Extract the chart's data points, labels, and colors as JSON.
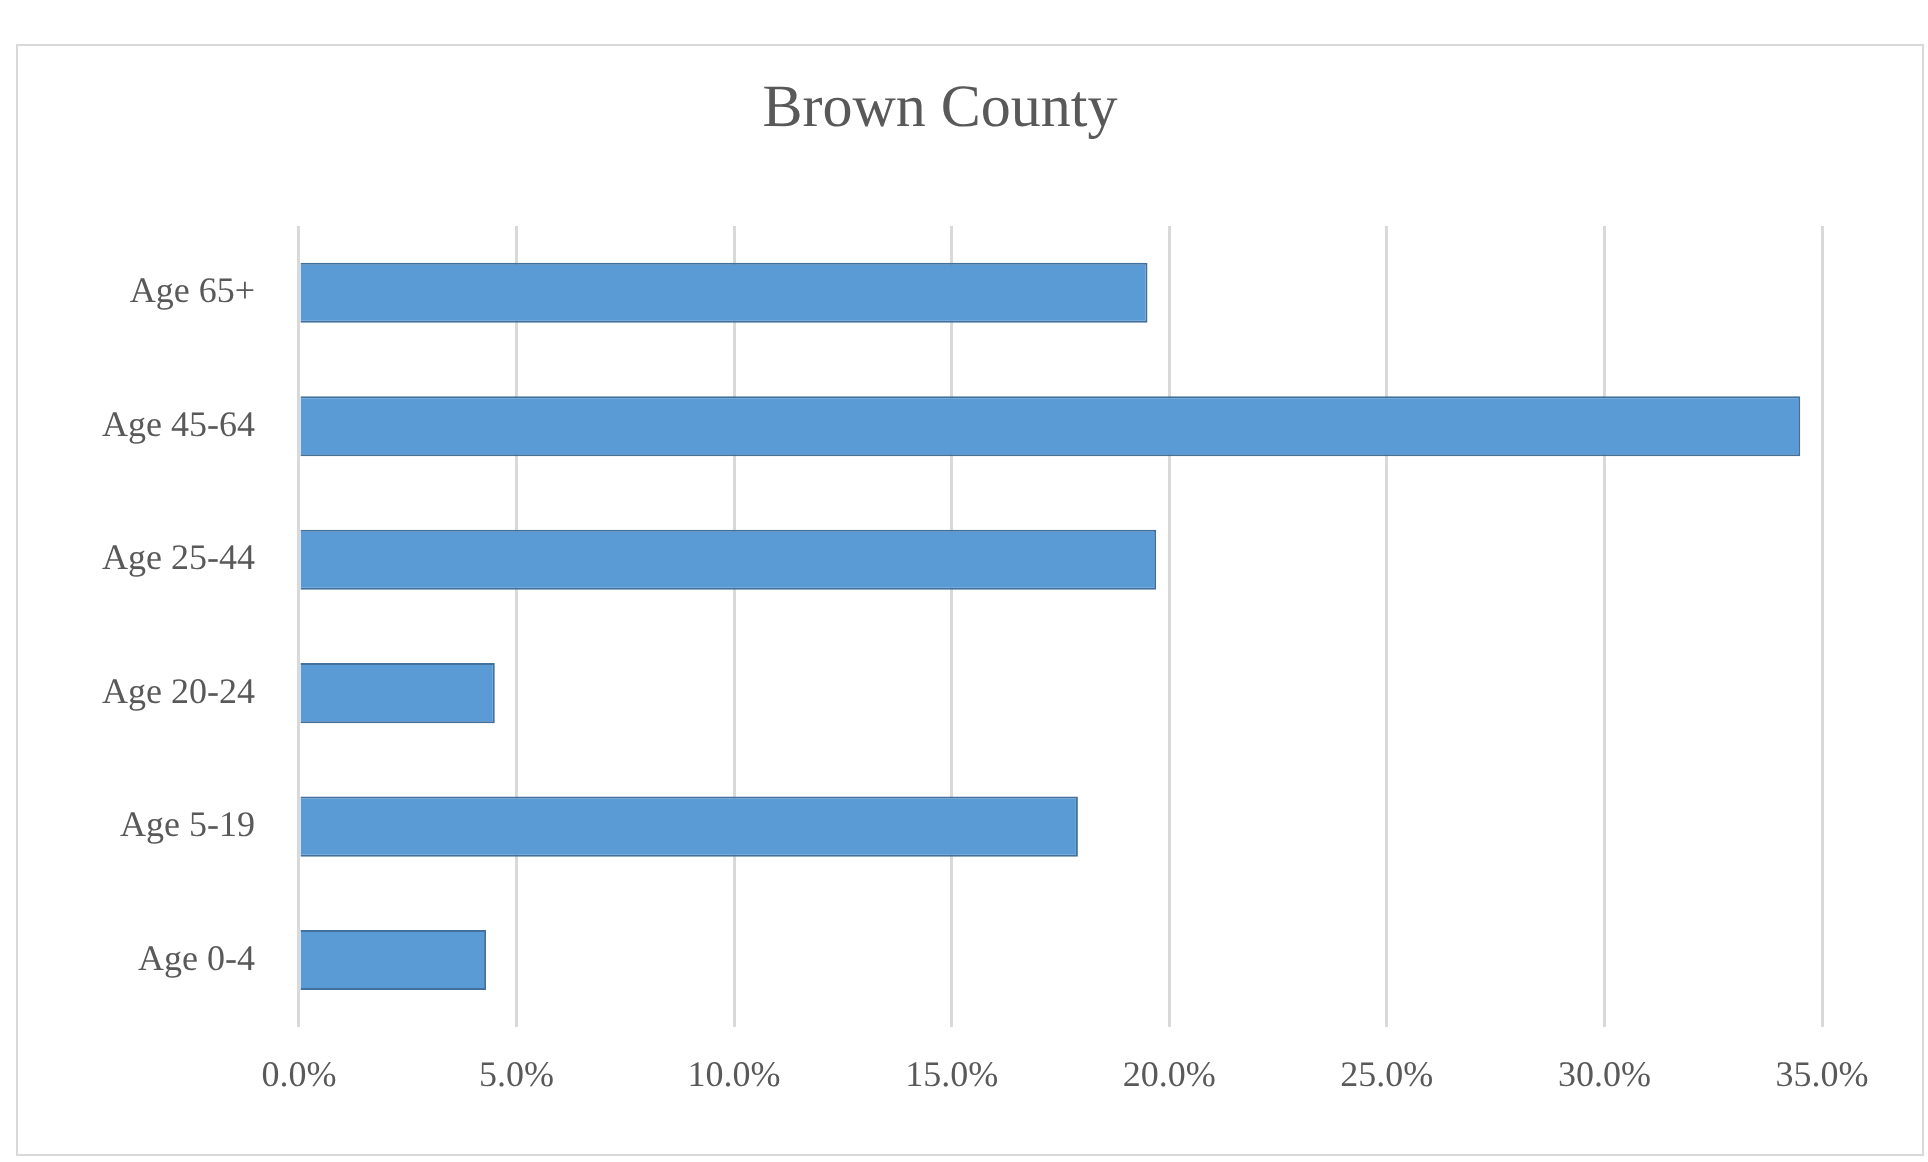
{
  "chart_data": {
    "type": "bar",
    "orientation": "horizontal",
    "title": "Brown County",
    "categories": [
      "Age 65+",
      "Age 45-64",
      "Age 25-44",
      "Age 20-24",
      "Age 5-19",
      "Age 0-4"
    ],
    "values": [
      19.5,
      34.5,
      19.7,
      4.5,
      17.9,
      4.3
    ],
    "color": "#5b9bd5",
    "xlim": [
      0,
      35
    ],
    "xticks": [
      {
        "value": 0,
        "label": "0.0%"
      },
      {
        "value": 5,
        "label": "5.0%"
      },
      {
        "value": 10,
        "label": "10.0%"
      },
      {
        "value": 15,
        "label": "15.0%"
      },
      {
        "value": 20,
        "label": "20.0%"
      },
      {
        "value": 25,
        "label": "25.0%"
      },
      {
        "value": 30,
        "label": "30.0%"
      },
      {
        "value": 35,
        "label": "35.0%"
      }
    ],
    "grid": "x",
    "legend": false
  }
}
